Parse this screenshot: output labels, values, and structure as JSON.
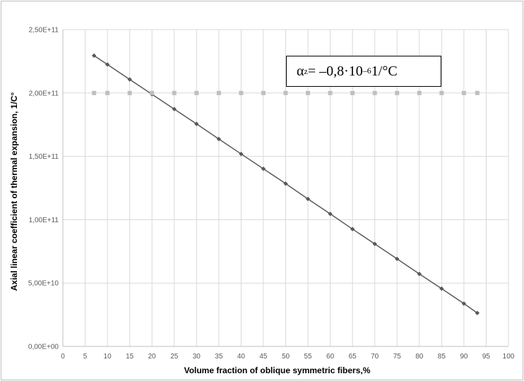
{
  "chart_data": {
    "type": "line",
    "title": "",
    "xlabel": "Volume fraction of oblique symmetric fibers,%",
    "ylabel": "Axial linear coefficient of thermal expansion, 1/C°",
    "xlim": [
      0,
      100
    ],
    "ylim": [
      0,
      250000000000
    ],
    "xticks": [
      0,
      5,
      10,
      15,
      20,
      25,
      30,
      35,
      40,
      45,
      50,
      55,
      60,
      65,
      70,
      75,
      80,
      85,
      90,
      95,
      100
    ],
    "xtick_labels": [
      "0",
      "5",
      "10",
      "15",
      "20",
      "25",
      "30",
      "35",
      "40",
      "45",
      "50",
      "55",
      "60",
      "65",
      "70",
      "75",
      "80",
      "85",
      "90",
      "95",
      "100"
    ],
    "yticks": [
      0,
      50000000000,
      100000000000,
      150000000000,
      200000000000,
      250000000000
    ],
    "ytick_labels": [
      "0,00E+00",
      "5,00E+10",
      "1,00E+11",
      "1,50E+11",
      "2,00E+11",
      "2,50E+11"
    ],
    "grid": true,
    "legend": "none",
    "series": [
      {
        "color": "#595959",
        "marker": "diamond",
        "line": true,
        "x": [
          7,
          10,
          15,
          20,
          25,
          30,
          35,
          40,
          45,
          50,
          55,
          60,
          65,
          70,
          75,
          80,
          85,
          90,
          93
        ],
        "y": [
          229500000000,
          222500000000,
          210700000000,
          199000000000,
          187300000000,
          175600000000,
          163700000000,
          151900000000,
          140200000000,
          128500000000,
          116400000000,
          104600000000,
          92600000000,
          80900000000,
          69100000000,
          57200000000,
          45600000000,
          33800000000,
          26400000000
        ]
      },
      {
        "color": "#bfbfbf",
        "marker": "square",
        "line": false,
        "x": [
          7,
          10,
          15,
          20,
          25,
          30,
          35,
          40,
          45,
          50,
          55,
          60,
          65,
          70,
          75,
          80,
          85,
          90,
          93
        ],
        "y": [
          200000000000,
          200000000000,
          200000000000,
          200000000000,
          200000000000,
          200000000000,
          200000000000,
          200000000000,
          200000000000,
          200000000000,
          200000000000,
          200000000000,
          200000000000,
          200000000000,
          200000000000,
          200000000000,
          200000000000,
          200000000000,
          200000000000
        ]
      }
    ],
    "annotation": {
      "symbol": "α",
      "subscript": "z",
      "equals": " = –0,8·10",
      "exponent": "–6",
      "unit": " 1/°C"
    }
  }
}
